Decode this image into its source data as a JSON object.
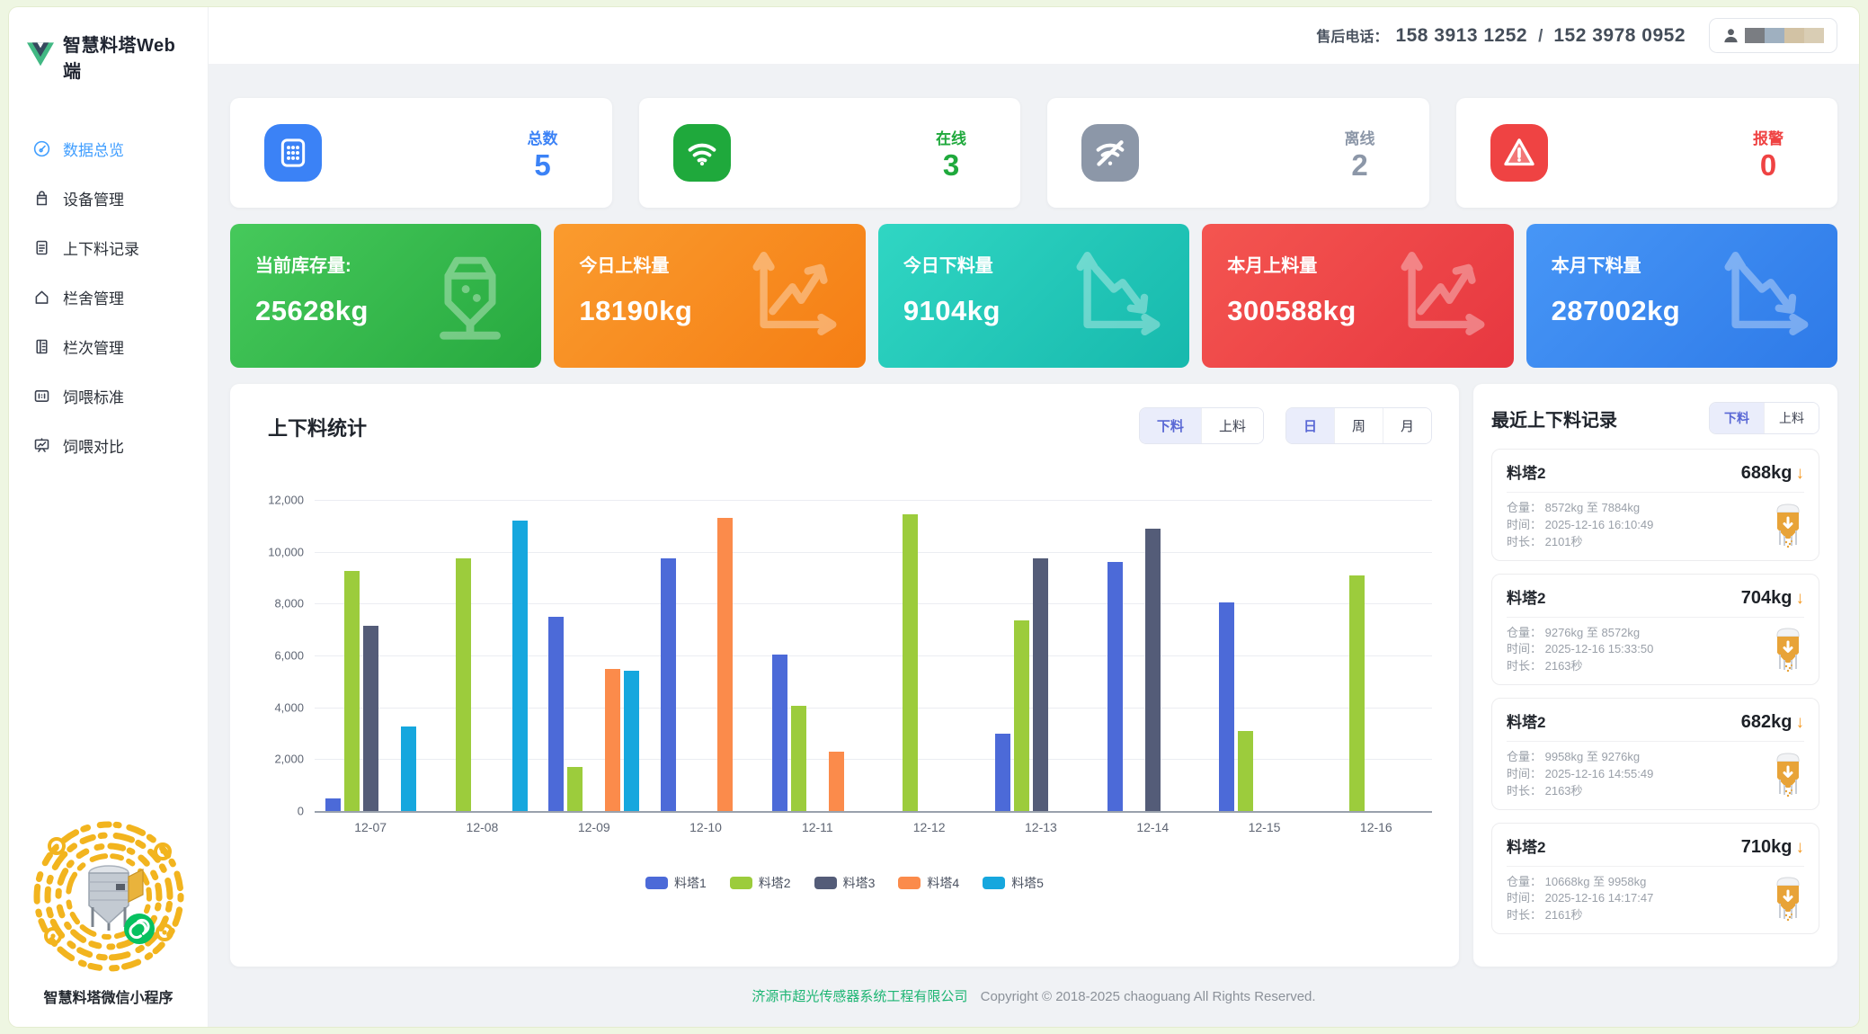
{
  "app": {
    "title": "智慧料塔Web端"
  },
  "header": {
    "phone_label": "售后电话：",
    "phone1": "158 3913 1252",
    "phone_separator": "/",
    "phone2": "152 3978 0952"
  },
  "sidebar": {
    "items": [
      {
        "key": "overview",
        "label": "数据总览",
        "icon": "gauge-icon",
        "active": true
      },
      {
        "key": "devices",
        "label": "设备管理",
        "icon": "device-icon",
        "active": false
      },
      {
        "key": "load-records",
        "label": "上下料记录",
        "icon": "record-icon",
        "active": false
      },
      {
        "key": "barns",
        "label": "栏舍管理",
        "icon": "house-icon",
        "active": false
      },
      {
        "key": "pens",
        "label": "栏次管理",
        "icon": "rows-icon",
        "active": false
      },
      {
        "key": "feeding-standard",
        "label": "饲喂标准",
        "icon": "standard-icon",
        "active": false
      },
      {
        "key": "feeding-compare",
        "label": "饲喂对比",
        "icon": "compare-icon",
        "active": false
      }
    ],
    "qr_label": "智慧料塔微信小程序"
  },
  "stats": [
    {
      "key": "total",
      "label": "总数",
      "value": "5",
      "color": "#3b82f6",
      "icon": "keypad-icon"
    },
    {
      "key": "online",
      "label": "在线",
      "value": "3",
      "color": "#1fa93c",
      "icon": "wifi-icon"
    },
    {
      "key": "offline",
      "label": "离线",
      "value": "2",
      "color": "#8c97a8",
      "icon": "wifi-off-icon"
    },
    {
      "key": "alarm",
      "label": "报警",
      "value": "0",
      "color": "#ef4343",
      "icon": "alert-icon"
    }
  ],
  "kpis": [
    {
      "key": "inventory",
      "label": "当前库存量:",
      "value": "25628kg",
      "icon": "silo-icon",
      "g1": "#46c95b",
      "g2": "#27a93f"
    },
    {
      "key": "today-up",
      "label": "今日上料量",
      "value": "18190kg",
      "icon": "trend-up-icon",
      "g1": "#fa9b2e",
      "g2": "#f57e14"
    },
    {
      "key": "today-down",
      "label": "今日下料量",
      "value": "9104kg",
      "icon": "trend-down-icon",
      "g1": "#30d6c3",
      "g2": "#17b9ad"
    },
    {
      "key": "month-up",
      "label": "本月上料量",
      "value": "300588kg",
      "icon": "trend-up-icon",
      "g1": "#f45550",
      "g2": "#e73740"
    },
    {
      "key": "month-down",
      "label": "本月下料量",
      "value": "287002kg",
      "icon": "trend-down-icon",
      "g1": "#4796f6",
      "g2": "#2e7ae8"
    }
  ],
  "chart_panel": {
    "title": "上下料统计",
    "mode_toggle": [
      "下料",
      "上料"
    ],
    "mode_active": 0,
    "period_toggle": [
      "日",
      "周",
      "月"
    ],
    "period_active": 0
  },
  "chart_data": {
    "type": "bar",
    "title": "上下料统计",
    "categories": [
      "12-07",
      "12-08",
      "12-09",
      "12-10",
      "12-11",
      "12-12",
      "12-13",
      "12-14",
      "12-15",
      "12-16"
    ],
    "series": [
      {
        "name": "料塔1",
        "color": "#4c6ad8",
        "values": [
          500,
          0,
          7500,
          9750,
          6050,
          0,
          3000,
          9600,
          8050,
          0
        ]
      },
      {
        "name": "料塔2",
        "color": "#9ccc3c",
        "values": [
          9250,
          9750,
          1700,
          0,
          4050,
          11450,
          7350,
          0,
          3100,
          9100
        ]
      },
      {
        "name": "料塔3",
        "color": "#545c78",
        "values": [
          7150,
          0,
          0,
          0,
          0,
          0,
          9750,
          10900,
          0,
          0
        ]
      },
      {
        "name": "料塔4",
        "color": "#fb8b4b",
        "values": [
          0,
          0,
          5480,
          11300,
          2280,
          0,
          0,
          0,
          0,
          0
        ]
      },
      {
        "name": "料塔5",
        "color": "#16a7de",
        "values": [
          3250,
          11200,
          5400,
          0,
          0,
          0,
          0,
          0,
          0,
          0
        ]
      }
    ],
    "ylim": [
      0,
      12000
    ],
    "yticks": [
      "12,000",
      "10,000",
      "8,000",
      "6,000",
      "4,000",
      "2,000",
      "0"
    ],
    "grid": true,
    "legend_position": "bottom"
  },
  "records_panel": {
    "title": "最近上下料记录",
    "toggle": [
      "下料",
      "上料"
    ],
    "toggle_active": 0,
    "field_labels": {
      "capacity": "仓量：",
      "time": "时间：",
      "duration": "时长："
    },
    "records": [
      {
        "tower": "料塔2",
        "weight": "688kg",
        "arrow": "↓",
        "capacity": "8572kg 至 7884kg",
        "time": "2025-12-16 16:10:49",
        "duration": "2101秒"
      },
      {
        "tower": "料塔2",
        "weight": "704kg",
        "arrow": "↓",
        "capacity": "9276kg 至 8572kg",
        "time": "2025-12-16 15:33:50",
        "duration": "2163秒"
      },
      {
        "tower": "料塔2",
        "weight": "682kg",
        "arrow": "↓",
        "capacity": "9958kg 至 9276kg",
        "time": "2025-12-16 14:55:49",
        "duration": "2163秒"
      },
      {
        "tower": "料塔2",
        "weight": "710kg",
        "arrow": "↓",
        "capacity": "10668kg 至 9958kg",
        "time": "2025-12-16 14:17:47",
        "duration": "2161秒"
      }
    ]
  },
  "footer": {
    "company": "济源市超光传感器系统工程有限公司",
    "copyright": "Copyright © 2018-2025 chaoguang All Rights Reserved."
  }
}
